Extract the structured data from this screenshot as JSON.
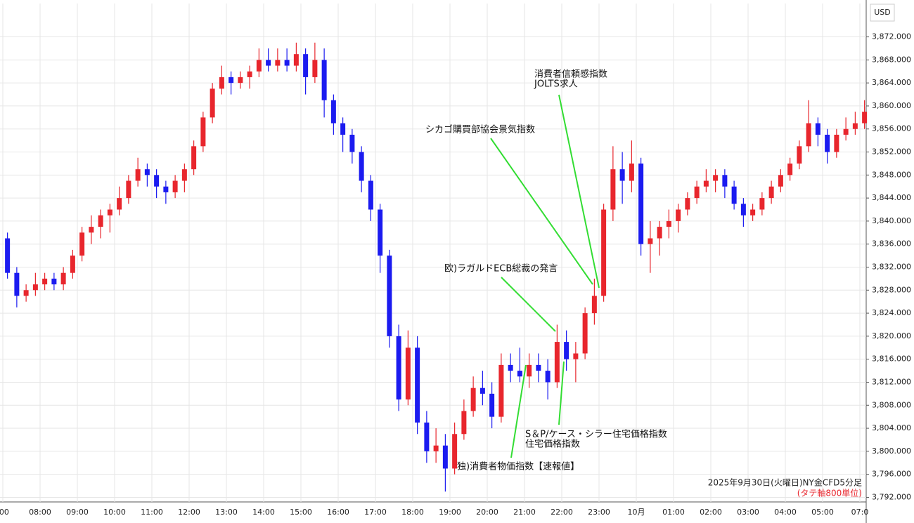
{
  "chart_data": {
    "type": "candlestick",
    "currency": "USD",
    "up_color": "#e8262d",
    "down_color": "#1b1bf0",
    "grid": true,
    "ylim": [
      3791.2,
      3877.8
    ],
    "yticks": [
      {
        "value": 3792,
        "label": "3,792.000"
      },
      {
        "value": 3796,
        "label": "3,796.000"
      },
      {
        "value": 3800,
        "label": "3,800.000"
      },
      {
        "value": 3804,
        "label": "3,804.000"
      },
      {
        "value": 3808,
        "label": "3,808.000"
      },
      {
        "value": 3812,
        "label": "3,812.000"
      },
      {
        "value": 3816,
        "label": "3,816.000"
      },
      {
        "value": 3820,
        "label": "3,820.000"
      },
      {
        "value": 3824,
        "label": "3,824.000"
      },
      {
        "value": 3828,
        "label": "3,828.000"
      },
      {
        "value": 3832,
        "label": "3,832.000"
      },
      {
        "value": 3836,
        "label": "3,836.000"
      },
      {
        "value": 3840,
        "label": "3,840.000"
      },
      {
        "value": 3844,
        "label": "3,844.000"
      },
      {
        "value": 3848,
        "label": "3,848.000"
      },
      {
        "value": 3852,
        "label": "3,852.000"
      },
      {
        "value": 3856,
        "label": "3,856.000"
      },
      {
        "value": 3860,
        "label": "3,860.000"
      },
      {
        "value": 3864,
        "label": "3,864.000"
      },
      {
        "value": 3868,
        "label": "3,868.000"
      },
      {
        "value": 3872,
        "label": "3,872.000"
      }
    ],
    "categories": [
      ":00",
      null,
      null,
      null,
      "08:00",
      null,
      null,
      null,
      "09:00",
      null,
      null,
      null,
      "10:00",
      null,
      null,
      null,
      "11:00",
      null,
      null,
      null,
      "12:00",
      null,
      null,
      null,
      "13:00",
      null,
      null,
      null,
      "14:00",
      null,
      null,
      null,
      "15:00",
      null,
      null,
      null,
      "16:00",
      null,
      null,
      null,
      "17:00",
      null,
      null,
      null,
      "18:00",
      null,
      null,
      null,
      "19:00",
      null,
      null,
      null,
      "20:00",
      null,
      null,
      null,
      "21:00",
      null,
      null,
      null,
      "22:00",
      null,
      null,
      null,
      "23:00",
      null,
      null,
      null,
      "10月",
      null,
      null,
      null,
      "01:00",
      null,
      null,
      null,
      "02:00",
      null,
      null,
      null,
      "03:00",
      null,
      null,
      null,
      "04:00",
      null,
      null,
      null,
      "05:00",
      null,
      null,
      null,
      "07:0"
    ],
    "ohlc": [
      [
        3837,
        3838,
        3830,
        3831
      ],
      [
        3831,
        3832,
        3825,
        3827
      ],
      [
        3827,
        3829,
        3826,
        3828
      ],
      [
        3828,
        3831,
        3827,
        3829
      ],
      [
        3829,
        3831,
        3828,
        3830
      ],
      [
        3830,
        3831,
        3828,
        3829
      ],
      [
        3829,
        3832,
        3828,
        3831
      ],
      [
        3831,
        3835,
        3830,
        3834
      ],
      [
        3834,
        3839,
        3833,
        3838
      ],
      [
        3838,
        3841,
        3836,
        3839
      ],
      [
        3839,
        3842,
        3837,
        3841
      ],
      [
        3841,
        3843,
        3838,
        3842
      ],
      [
        3842,
        3846,
        3841,
        3844
      ],
      [
        3844,
        3848,
        3843,
        3847
      ],
      [
        3847,
        3851,
        3846,
        3849
      ],
      [
        3849,
        3850,
        3846,
        3848
      ],
      [
        3848,
        3849,
        3844,
        3846
      ],
      [
        3846,
        3847,
        3843,
        3845
      ],
      [
        3845,
        3848,
        3844,
        3847
      ],
      [
        3847,
        3850,
        3845,
        3849
      ],
      [
        3849,
        3854,
        3848,
        3853
      ],
      [
        3853,
        3859,
        3852,
        3858
      ],
      [
        3858,
        3864,
        3857,
        3863
      ],
      [
        3863,
        3867,
        3862,
        3865
      ],
      [
        3865,
        3866,
        3862,
        3864
      ],
      [
        3864,
        3866,
        3863,
        3865
      ],
      [
        3865,
        3867,
        3863,
        3866
      ],
      [
        3866,
        3870,
        3865,
        3868
      ],
      [
        3868,
        3870,
        3866,
        3867
      ],
      [
        3867,
        3870,
        3866,
        3868
      ],
      [
        3868,
        3870,
        3866,
        3867
      ],
      [
        3867,
        3871,
        3866,
        3869
      ],
      [
        3869,
        3870,
        3862,
        3865
      ],
      [
        3865,
        3871,
        3864,
        3868
      ],
      [
        3868,
        3870,
        3858,
        3861
      ],
      [
        3861,
        3862,
        3855,
        3857
      ],
      [
        3857,
        3858,
        3852,
        3855
      ],
      [
        3855,
        3856,
        3850,
        3852
      ],
      [
        3852,
        3853,
        3845,
        3847
      ],
      [
        3847,
        3848,
        3840,
        3842
      ],
      [
        3842,
        3843,
        3831,
        3834
      ],
      [
        3834,
        3835,
        3818,
        3820
      ],
      [
        3820,
        3822,
        3807,
        3809
      ],
      [
        3809,
        3821,
        3808,
        3818
      ],
      [
        3818,
        3820,
        3803,
        3805
      ],
      [
        3805,
        3807,
        3798,
        3800
      ],
      [
        3800,
        3804,
        3798,
        3801
      ],
      [
        3801,
        3803,
        3793,
        3797
      ],
      [
        3797,
        3805,
        3796,
        3803
      ],
      [
        3803,
        3809,
        3802,
        3807
      ],
      [
        3807,
        3813,
        3806,
        3811
      ],
      [
        3811,
        3814,
        3808,
        3810
      ],
      [
        3810,
        3812,
        3804,
        3806
      ],
      [
        3806,
        3817,
        3805,
        3815
      ],
      [
        3815,
        3817,
        3812,
        3814
      ],
      [
        3814,
        3818,
        3812,
        3813
      ],
      [
        3813,
        3817,
        3811,
        3815
      ],
      [
        3815,
        3817,
        3812,
        3814
      ],
      [
        3814,
        3816,
        3809,
        3812
      ],
      [
        3812,
        3822,
        3811,
        3819
      ],
      [
        3819,
        3821,
        3814,
        3816
      ],
      [
        3816,
        3819,
        3812,
        3817
      ],
      [
        3817,
        3825,
        3816,
        3824
      ],
      [
        3824,
        3830,
        3822,
        3827
      ],
      [
        3827,
        3843,
        3826,
        3842
      ],
      [
        3842,
        3853,
        3840,
        3849
      ],
      [
        3849,
        3852,
        3843,
        3847
      ],
      [
        3847,
        3854,
        3845,
        3850
      ],
      [
        3850,
        3851,
        3834,
        3836
      ],
      [
        3836,
        3840,
        3831,
        3837
      ],
      [
        3837,
        3840,
        3834,
        3839
      ],
      [
        3839,
        3842,
        3837,
        3840
      ],
      [
        3840,
        3843,
        3838,
        3842
      ],
      [
        3842,
        3845,
        3841,
        3844
      ],
      [
        3844,
        3847,
        3843,
        3846
      ],
      [
        3846,
        3849,
        3845,
        3847
      ],
      [
        3847,
        3849,
        3845,
        3848
      ],
      [
        3848,
        3849,
        3844,
        3846
      ],
      [
        3846,
        3847,
        3842,
        3843
      ],
      [
        3843,
        3844,
        3839,
        3841
      ],
      [
        3841,
        3843,
        3840,
        3842
      ],
      [
        3842,
        3845,
        3841,
        3844
      ],
      [
        3844,
        3847,
        3843,
        3846
      ],
      [
        3846,
        3849,
        3845,
        3848
      ],
      [
        3848,
        3851,
        3847,
        3850
      ],
      [
        3850,
        3854,
        3849,
        3853
      ],
      [
        3853,
        3861,
        3852,
        3857
      ],
      [
        3857,
        3858,
        3853,
        3855
      ],
      [
        3855,
        3856,
        3850,
        3852
      ],
      [
        3852,
        3856,
        3851,
        3855
      ],
      [
        3855,
        3858,
        3854,
        3856
      ],
      [
        3856,
        3859,
        3855,
        3857
      ],
      [
        3857,
        3861,
        3856,
        3859
      ]
    ],
    "annotations": [
      [
        "消費者信頼感指数",
        "JOLTS求人"
      ],
      [
        "シカゴ購買部協会景気指数"
      ],
      [
        "欧)ラガルドECB総裁の発言"
      ],
      [
        "S＆P/ケース・シラー住宅価格指数",
        "住宅価格指数"
      ],
      [
        "独)消費者物価指数【速報値】"
      ]
    ],
    "footer": "2025年9月30日(火曜日)NY金CFD5分足",
    "footer_note": "(タテ軸800単位)"
  }
}
